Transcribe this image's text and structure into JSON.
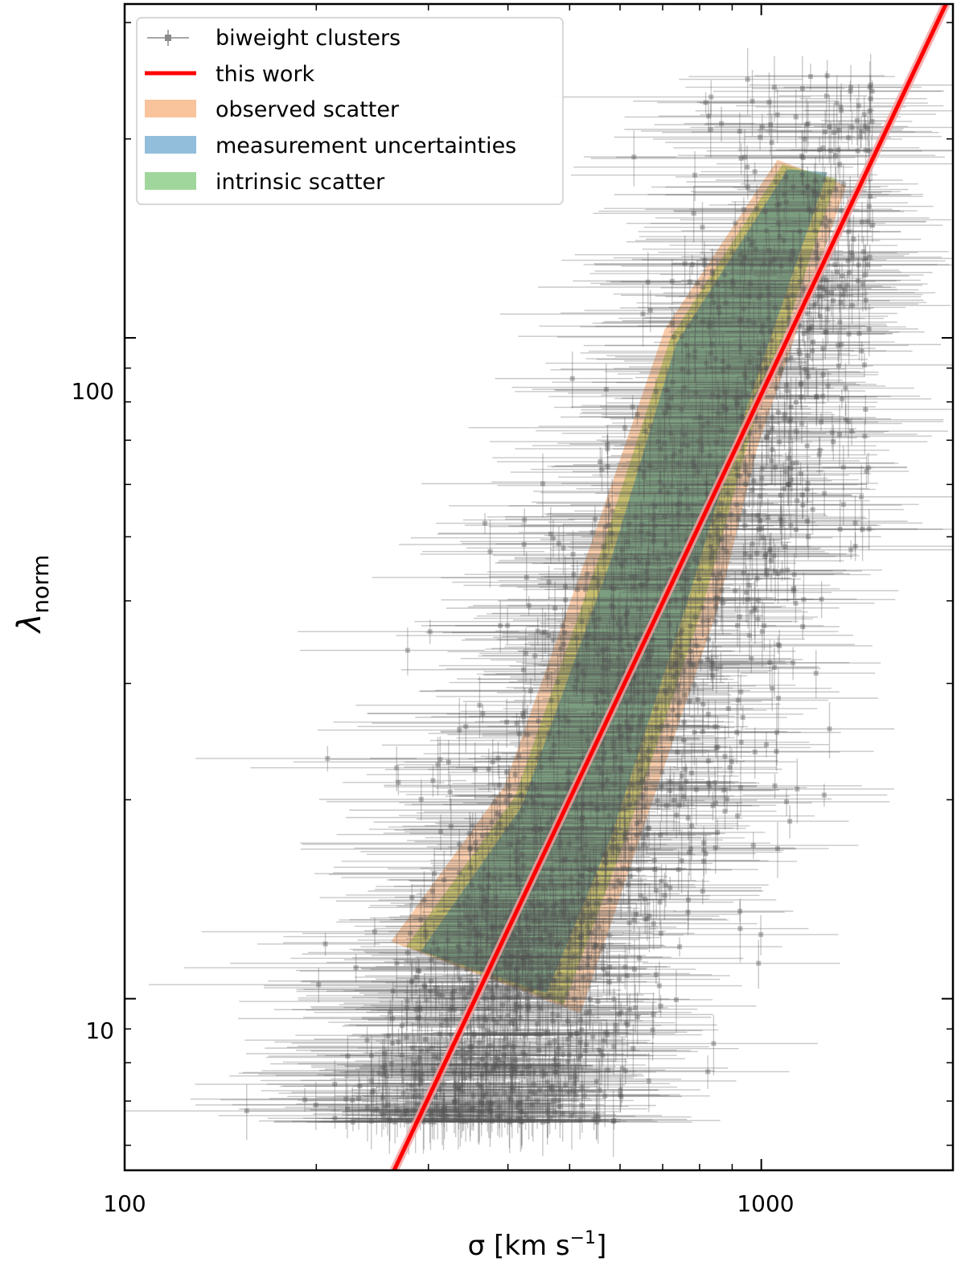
{
  "chart_data": {
    "type": "scatter",
    "xscale": "log",
    "yscale": "log",
    "xlim": [
      100,
      2000
    ],
    "ylim": [
      5.5,
      320
    ],
    "xlabel_main": "σ [km s",
    "xlabel_sup": "−1",
    "xlabel_end": "]",
    "ylabel_main": "λ",
    "ylabel_sub": "norm",
    "x_tick_labels": [
      {
        "value": 100,
        "label": "100"
      },
      {
        "value": 1000,
        "label": "1000"
      }
    ],
    "y_tick_labels": [
      {
        "value": 10,
        "label": "10"
      },
      {
        "value": 100,
        "label": "100"
      }
    ],
    "grid": false,
    "legend": {
      "placement": "top-left",
      "entries": [
        {
          "key": "clusters",
          "label": "biweight clusters"
        },
        {
          "key": "fit",
          "label": "this work"
        },
        {
          "key": "observed",
          "label": "observed scatter"
        },
        {
          "key": "measurement",
          "label": "measurement uncertainties"
        },
        {
          "key": "intrinsic",
          "label": "intrinsic scatter"
        }
      ]
    },
    "colors": {
      "points": "#555555",
      "fit_line": "#ff0000",
      "fit_band": "#f4a0a0",
      "observed": "#f8b889",
      "measurement": "#7fb3d5",
      "intrinsic": "#8fcf8a"
    },
    "fit_line": {
      "x": [
        265,
        1950
      ],
      "y": [
        5.5,
        320
      ]
    },
    "bands": {
      "observed": {
        "lower": [
          [
            262,
            12.2
          ],
          [
            520,
            9.5
          ],
          [
            645,
            17.5
          ],
          [
            855,
            39
          ],
          [
            985,
            68
          ],
          [
            1360,
            170
          ]
        ],
        "upper": [
          [
            262,
            12.2
          ],
          [
            395,
            21
          ],
          [
            545,
            50
          ],
          [
            705,
            103
          ],
          [
            1060,
            186
          ],
          [
            1360,
            170
          ]
        ]
      },
      "measurement": {
        "lower": [
          [
            292,
            11.8
          ],
          [
            460,
            10.2
          ],
          [
            580,
            17.5
          ],
          [
            760,
            39
          ],
          [
            920,
            72
          ],
          [
            1270,
            178
          ]
        ],
        "upper": [
          [
            292,
            11.8
          ],
          [
            420,
            19.5
          ],
          [
            580,
            46
          ],
          [
            735,
            98
          ],
          [
            1100,
            180
          ],
          [
            1270,
            178
          ]
        ]
      },
      "intrinsic": {
        "lower": [
          [
            277,
            12
          ],
          [
            490,
            9.8
          ],
          [
            612,
            17.5
          ],
          [
            808,
            39
          ],
          [
            955,
            70
          ],
          [
            1315,
            174
          ]
        ],
        "upper": [
          [
            277,
            12
          ],
          [
            410,
            20.2
          ],
          [
            562,
            48
          ],
          [
            720,
            100
          ],
          [
            1080,
            183
          ],
          [
            1315,
            174
          ]
        ]
      }
    },
    "points": {
      "count": 1800,
      "relation": {
        "ref_x": 660,
        "ref_y": 30,
        "slope": 2.4
      },
      "y_range": [
        6.5,
        250
      ],
      "x_range": [
        150,
        1500
      ],
      "scatter_dex": 0.22
    }
  }
}
